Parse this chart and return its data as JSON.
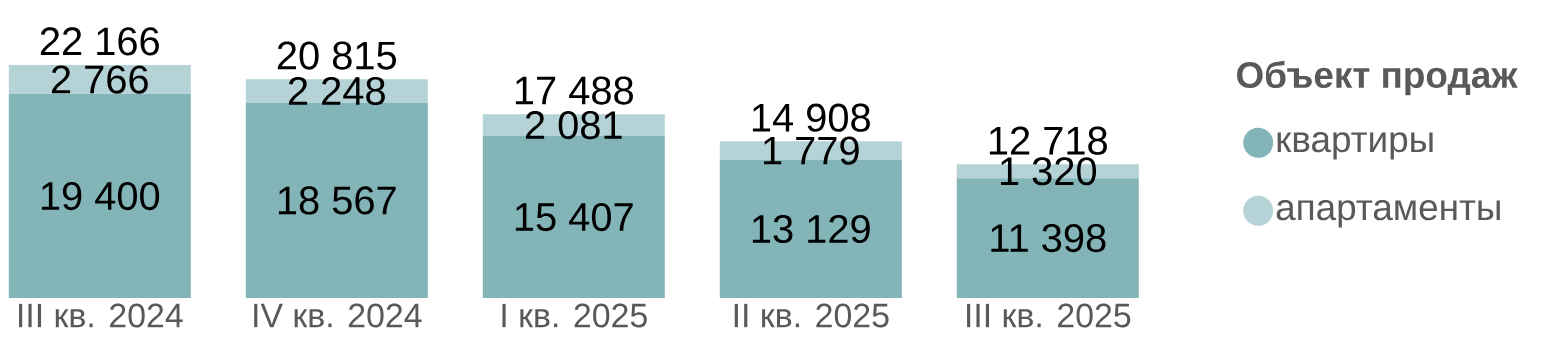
{
  "chart_data": {
    "type": "bar",
    "stacked": true,
    "categories": [
      "III кв. 2024",
      "IV кв. 2024",
      "I кв. 2025",
      "II кв. 2025",
      "III кв. 2025"
    ],
    "series": [
      {
        "name": "квартиры",
        "color": "#82b4b8",
        "values": [
          19400,
          18567,
          15407,
          13129,
          11398
        ],
        "value_labels": [
          "19 400",
          "18 567",
          "15 407",
          "13 129",
          "11 398"
        ]
      },
      {
        "name": "апартаменты",
        "color": "#b5d3d6",
        "values": [
          2766,
          2248,
          2081,
          1779,
          1320
        ],
        "value_labels": [
          "2 766",
          "2 248",
          "2 081",
          "1 779",
          "1 320"
        ]
      }
    ],
    "totals": [
      "22 166",
      "20 815",
      "17 488",
      "14 908",
      "12 718"
    ],
    "legend_title": "Объект продаж",
    "legend": "right"
  }
}
